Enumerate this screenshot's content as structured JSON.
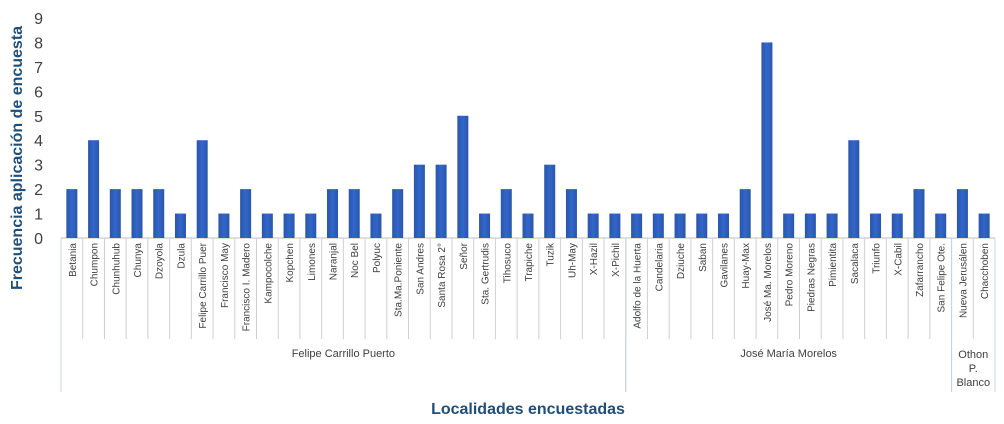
{
  "chart_data": {
    "type": "bar",
    "ylabel": "Frecuencia aplicación de encuesta",
    "xlabel": "Localidades encuestadas",
    "ylim": [
      0,
      9
    ],
    "yticks": [
      0,
      1,
      2,
      3,
      4,
      5,
      6,
      7,
      8,
      9
    ],
    "grid": false,
    "bar_color": "#3366cc",
    "categories": [
      "Betania",
      "Chumpon",
      "Chunhuhub",
      "Chunya",
      "Dzoyola",
      "Dzula",
      "Felipe Carrillo Puer",
      "Francisco May",
      "Francisco I. Madero",
      "Kampocolche",
      "Kopchen",
      "Limones",
      "Naranjal",
      "Noc Bel",
      "Polyuc",
      "Sta.Ma.Poniente",
      "San Andres",
      "Santa Rosa 2°",
      "Señor",
      "Sta. Gertrudis",
      "Tihosuco",
      "Trapiche",
      "Tuzik",
      "Uh-May",
      "X-Hazil",
      "X-Pichil",
      "Adolfo de la Huerta",
      "Candelaria",
      "Dziuche",
      "Saban",
      "Gavilanes",
      "Huay-Max",
      "José Ma. Morelos",
      "Pedro Moreno",
      "Piedras Negras",
      "Pimientita",
      "Sacalaca",
      "Triunfo",
      "X-Cabil",
      "Zafarrancho",
      "San Felipe Ote.",
      "Nueva Jerusálen",
      "Chacchoben"
    ],
    "values": [
      2,
      4,
      2,
      2,
      2,
      1,
      4,
      1,
      2,
      1,
      1,
      1,
      2,
      2,
      1,
      2,
      3,
      3,
      5,
      1,
      2,
      1,
      3,
      2,
      1,
      1,
      1,
      1,
      1,
      1,
      1,
      2,
      8,
      1,
      1,
      1,
      4,
      1,
      1,
      2,
      1,
      2,
      1
    ],
    "groups": [
      {
        "lines": [
          "Felipe Carrillo Puerto"
        ],
        "start": 0,
        "end": 25
      },
      {
        "lines": [
          "José María Morelos"
        ],
        "start": 26,
        "end": 40
      },
      {
        "lines": [
          "Othon",
          "P.",
          "Blanco"
        ],
        "start": 41,
        "end": 42
      }
    ]
  }
}
